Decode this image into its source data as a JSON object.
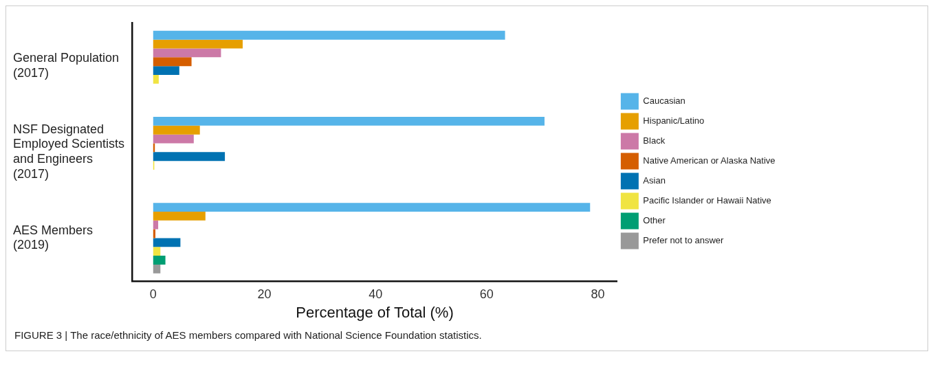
{
  "chart_data": {
    "type": "bar",
    "orientation": "horizontal",
    "categories": [
      "General Population\n(2017)",
      "NSF Designated\nEmployed Scientists\nand Engineers\n(2017)",
      "AES Members\n(2019)"
    ],
    "series": [
      {
        "name": "Caucasian",
        "color": "#56b4e9",
        "values": [
          63.3,
          70.4,
          78.6
        ]
      },
      {
        "name": "Hispanic/Latino",
        "color": "#e69f00",
        "values": [
          16.1,
          8.4,
          9.4
        ]
      },
      {
        "name": "Black",
        "color": "#cc79a7",
        "values": [
          12.2,
          7.3,
          0.9
        ]
      },
      {
        "name": "Native American or Alaska Native",
        "color": "#d55e00",
        "values": [
          6.9,
          0.3,
          0.4
        ]
      },
      {
        "name": "Asian",
        "color": "#0072b2",
        "values": [
          4.7,
          12.9,
          4.9
        ]
      },
      {
        "name": "Pacific Islander or Hawaii Native",
        "color": "#f0e442",
        "values": [
          1.0,
          0.2,
          1.3
        ]
      },
      {
        "name": "Other",
        "color": "#009e73",
        "values": [
          null,
          null,
          2.2
        ]
      },
      {
        "name": "Prefer not to answer",
        "color": "#999999",
        "values": [
          null,
          null,
          1.3
        ]
      }
    ],
    "xlabel": "Percentage of Total (%)",
    "xlim": [
      -3.8,
      83.5
    ],
    "xticks": [
      0,
      20,
      40,
      60,
      80
    ],
    "grid": false,
    "legend": "right",
    "annotations": [
      "FIGURE 3 | The race/ethnicity of AES members compared with National Science Foundation statistics."
    ]
  }
}
